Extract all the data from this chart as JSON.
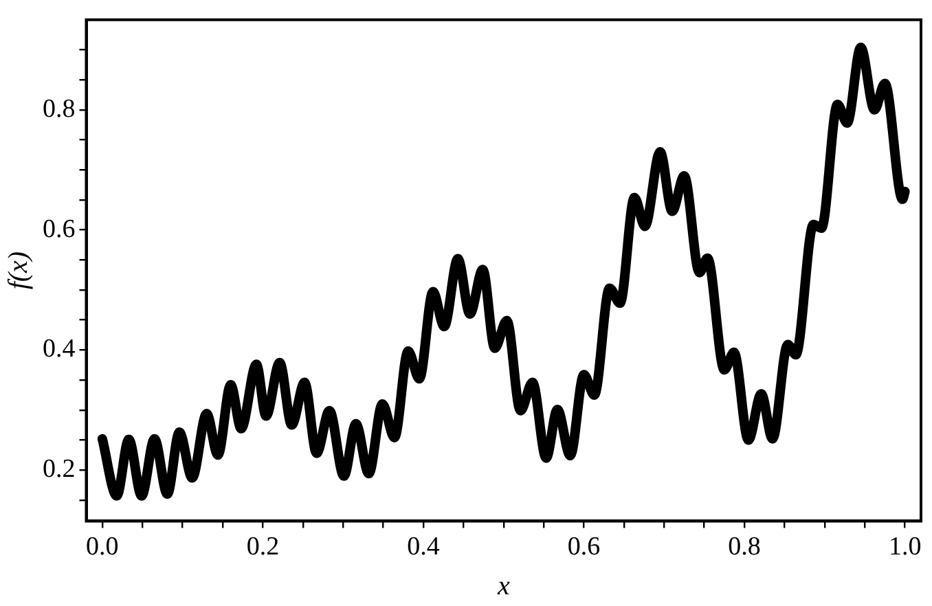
{
  "chart_data": {
    "type": "line",
    "xlabel": "x",
    "ylabel": "f(x)",
    "xlim": [
      -0.02,
      1.02
    ],
    "ylim": [
      0.115,
      0.95
    ],
    "xticks": [
      {
        "value": 0,
        "label": "0.0"
      },
      {
        "value": 0.05,
        "label": null
      },
      0.2,
      {
        "value": 0.1,
        "label": null
      },
      {
        "value": 0.15,
        "label": null
      },
      {
        "value": 0.25,
        "label": null
      },
      {
        "value": 0.3,
        "label": null
      },
      {
        "value": 0.35,
        "label": null
      },
      0.4,
      {
        "value": 0.45,
        "label": null
      },
      {
        "value": 0.5,
        "label": null
      },
      {
        "value": 0.55,
        "label": null
      },
      0.6,
      {
        "value": 0.65,
        "label": null
      },
      {
        "value": 0.7,
        "label": null
      },
      {
        "value": 0.75,
        "label": null
      },
      0.8,
      {
        "value": 0.85,
        "label": null
      },
      {
        "value": 0.9,
        "label": null
      },
      {
        "value": 0.95,
        "label": null
      },
      {
        "value": 1,
        "label": "1.0"
      }
    ],
    "yticks": [
      {
        "value": 0.15,
        "label": null
      },
      0.2,
      {
        "value": 0.25,
        "label": null
      },
      {
        "value": 0.3,
        "label": null
      },
      {
        "value": 0.35,
        "label": null
      },
      0.4,
      {
        "value": 0.45,
        "label": null
      },
      {
        "value": 0.5,
        "label": null
      },
      {
        "value": 0.55,
        "label": null
      },
      0.6,
      {
        "value": 0.65,
        "label": null
      },
      {
        "value": 0.7,
        "label": null
      },
      {
        "value": 0.75,
        "label": null
      },
      0.8,
      {
        "value": 0.85,
        "label": null
      },
      {
        "value": 0.9,
        "label": null
      }
    ],
    "grid": false,
    "legend": false,
    "marker": "none",
    "line_style": "solid",
    "series": [
      {
        "color": "#000000",
        "x": [
          0,
          0.018,
          0.033,
          0.049,
          0.065,
          0.081,
          0.096,
          0.112,
          0.13,
          0.144,
          0.16,
          0.173,
          0.192,
          0.204,
          0.221,
          0.236,
          0.252,
          0.267,
          0.283,
          0.301,
          0.316,
          0.332,
          0.349,
          0.364,
          0.381,
          0.395,
          0.412,
          0.426,
          0.443,
          0.458,
          0.474,
          0.489,
          0.504,
          0.521,
          0.536,
          0.553,
          0.567,
          0.583,
          0.6,
          0.613,
          0.632,
          0.645,
          0.663,
          0.676,
          0.695,
          0.71,
          0.725,
          0.744,
          0.754,
          0.775,
          0.787,
          0.805,
          0.821,
          0.835,
          0.854,
          0.864,
          0.886,
          0.896,
          0.916,
          0.928,
          0.945,
          0.962,
          0.975,
          0.997,
          1
        ],
        "values": [
          0.252,
          0.157,
          0.251,
          0.157,
          0.252,
          0.16,
          0.263,
          0.187,
          0.294,
          0.225,
          0.342,
          0.269,
          0.376,
          0.29,
          0.379,
          0.275,
          0.346,
          0.228,
          0.299,
          0.19,
          0.277,
          0.194,
          0.31,
          0.254,
          0.398,
          0.352,
          0.497,
          0.439,
          0.552,
          0.46,
          0.534,
          0.403,
          0.449,
          0.299,
          0.346,
          0.22,
          0.301,
          0.224,
          0.359,
          0.325,
          0.503,
          0.478,
          0.654,
          0.606,
          0.73,
          0.631,
          0.69,
          0.529,
          0.553,
          0.367,
          0.396,
          0.25,
          0.327,
          0.252,
          0.409,
          0.392,
          0.609,
          0.603,
          0.809,
          0.778,
          0.904,
          0.8,
          0.844,
          0.651,
          0.664
        ]
      }
    ]
  }
}
